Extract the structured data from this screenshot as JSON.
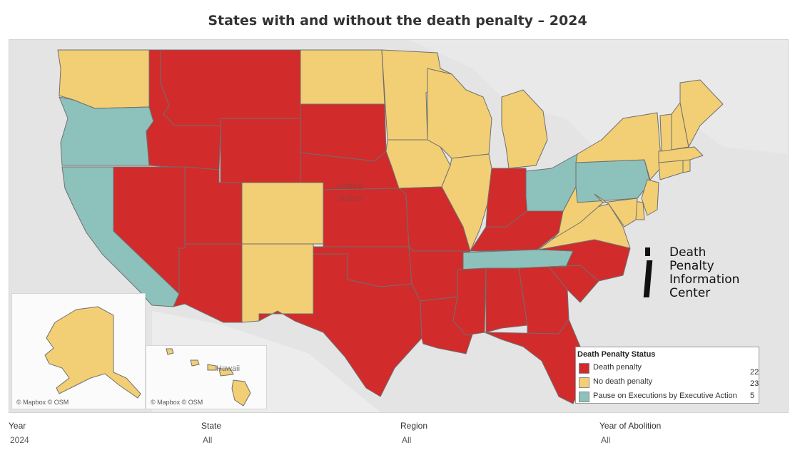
{
  "title": "States with and without the death penalty – 2024",
  "colors": {
    "death": "#d22b2b",
    "none": "#f2cf75",
    "pause": "#8dc1bc",
    "land": "#f5f5f5",
    "water": "#e2e2e2",
    "border": "#6f6f6f"
  },
  "map": {
    "country_label": [
      "United",
      "States"
    ],
    "hawaii_label": "Hawaii",
    "credit": "© Mapbox © OSM"
  },
  "logo": {
    "lines": [
      "Death",
      "Penalty",
      "Information",
      "Center"
    ]
  },
  "legend": {
    "title": "Death Penalty Status",
    "items": [
      {
        "label": "Death penalty",
        "status": "death",
        "count": "22"
      },
      {
        "label": "No death penalty",
        "status": "none",
        "count": "23"
      },
      {
        "label": "Pause on Executions by Executive Action",
        "status": "pause",
        "count": "5"
      }
    ]
  },
  "filters": [
    {
      "label": "Year",
      "value": "2024"
    },
    {
      "label": "State",
      "value": "All"
    },
    {
      "label": "Region",
      "value": "All"
    },
    {
      "label": "Year of Abolition",
      "value": "All"
    }
  ],
  "states": [
    {
      "code": "WA",
      "status": "none"
    },
    {
      "code": "OR",
      "status": "pause"
    },
    {
      "code": "CA",
      "status": "pause"
    },
    {
      "code": "ID",
      "status": "death"
    },
    {
      "code": "NV",
      "status": "death"
    },
    {
      "code": "MT",
      "status": "death"
    },
    {
      "code": "WY",
      "status": "death"
    },
    {
      "code": "UT",
      "status": "death"
    },
    {
      "code": "AZ",
      "status": "death"
    },
    {
      "code": "CO",
      "status": "none"
    },
    {
      "code": "NM",
      "status": "none"
    },
    {
      "code": "ND",
      "status": "none"
    },
    {
      "code": "SD",
      "status": "death"
    },
    {
      "code": "NE",
      "status": "death"
    },
    {
      "code": "KS",
      "status": "death"
    },
    {
      "code": "OK",
      "status": "death"
    },
    {
      "code": "TX",
      "status": "death"
    },
    {
      "code": "MN",
      "status": "none"
    },
    {
      "code": "IA",
      "status": "none"
    },
    {
      "code": "MO",
      "status": "death"
    },
    {
      "code": "AR",
      "status": "death"
    },
    {
      "code": "LA",
      "status": "death"
    },
    {
      "code": "WI",
      "status": "none"
    },
    {
      "code": "IL",
      "status": "none"
    },
    {
      "code": "MI",
      "status": "none"
    },
    {
      "code": "IN",
      "status": "death"
    },
    {
      "code": "OH",
      "status": "pause"
    },
    {
      "code": "KY",
      "status": "death"
    },
    {
      "code": "TN",
      "status": "pause"
    },
    {
      "code": "MS",
      "status": "death"
    },
    {
      "code": "AL",
      "status": "death"
    },
    {
      "code": "GA",
      "status": "death"
    },
    {
      "code": "FL",
      "status": "death"
    },
    {
      "code": "SC",
      "status": "death"
    },
    {
      "code": "NC",
      "status": "death"
    },
    {
      "code": "VA",
      "status": "none"
    },
    {
      "code": "WV",
      "status": "none"
    },
    {
      "code": "PA",
      "status": "pause"
    },
    {
      "code": "NY",
      "status": "none"
    },
    {
      "code": "NJ",
      "status": "none"
    },
    {
      "code": "DE",
      "status": "none"
    },
    {
      "code": "MD",
      "status": "none"
    },
    {
      "code": "CT",
      "status": "none"
    },
    {
      "code": "RI",
      "status": "none"
    },
    {
      "code": "MA",
      "status": "none"
    },
    {
      "code": "VT",
      "status": "none"
    },
    {
      "code": "NH",
      "status": "none"
    },
    {
      "code": "ME",
      "status": "none"
    },
    {
      "code": "AK",
      "status": "none"
    },
    {
      "code": "HI",
      "status": "none"
    }
  ]
}
